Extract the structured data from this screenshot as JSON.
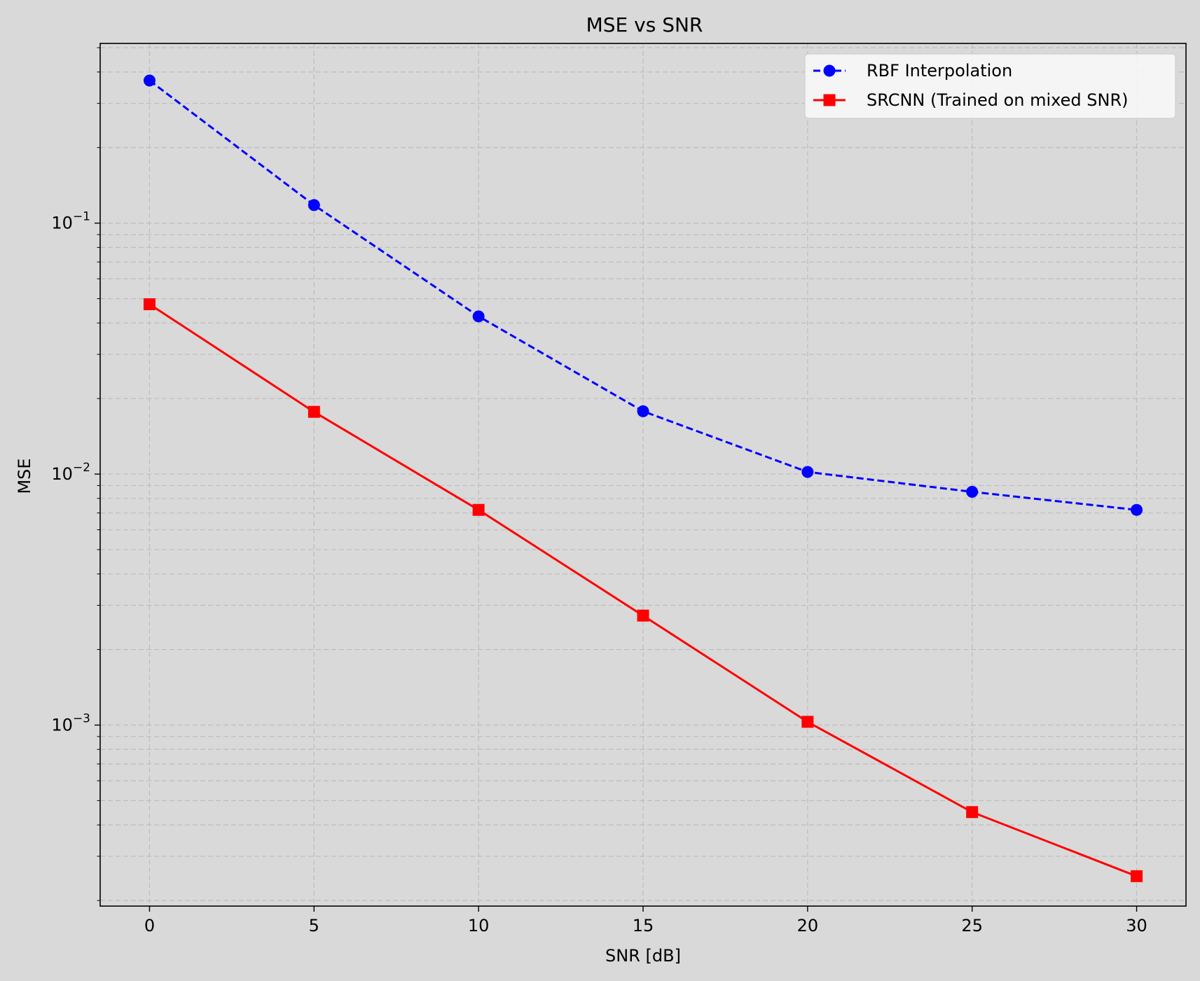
{
  "chart_data": {
    "type": "line",
    "title": "MSE vs SNR",
    "xlabel": "SNR [dB]",
    "ylabel": "MSE",
    "x": [
      0,
      5,
      10,
      15,
      20,
      25,
      30
    ],
    "xlim": [
      -1.5,
      31.5
    ],
    "x_ticks": [
      0,
      5,
      10,
      15,
      20,
      25,
      30
    ],
    "x_tick_labels": [
      "0",
      "5",
      "10",
      "15",
      "20",
      "25",
      "30"
    ],
    "y_scale": "log",
    "ylim": [
      0.00019,
      0.52
    ],
    "y_major_ticks": [
      0.001,
      0.01,
      0.1
    ],
    "y_tick_labels": [
      {
        "base": "10",
        "exp": "−3"
      },
      {
        "base": "10",
        "exp": "−2"
      },
      {
        "base": "10",
        "exp": "−1"
      }
    ],
    "grid": true,
    "legend_position": "top-right",
    "series": [
      {
        "name": "RBF Interpolation",
        "color": "#0000ff",
        "line_style": "dashed",
        "marker": "circle",
        "values": [
          0.37,
          0.118,
          0.0425,
          0.0178,
          0.0102,
          0.0085,
          0.0072
        ]
      },
      {
        "name": "SRCNN (Trained on mixed SNR)",
        "color": "#ff0000",
        "line_style": "solid",
        "marker": "square",
        "values": [
          0.0475,
          0.0177,
          0.0072,
          0.00273,
          0.00103,
          0.00045,
          0.00025
        ]
      }
    ]
  }
}
